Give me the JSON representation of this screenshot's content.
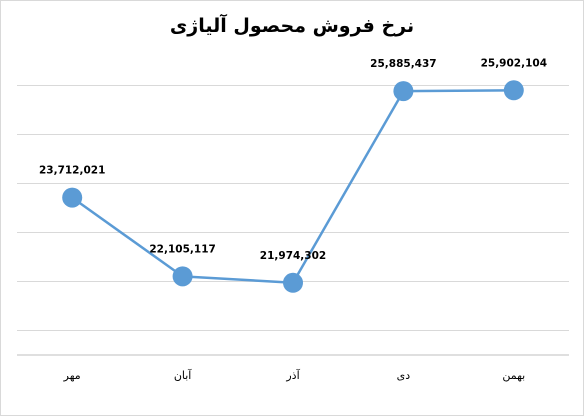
{
  "chart_data": {
    "type": "line",
    "title": "نرخ فروش محصول آلیاژی",
    "categories": [
      "مهر",
      "آبان",
      "آذر",
      "دی",
      "بهمن"
    ],
    "series": [
      {
        "values": [
          23712021,
          22105117,
          21974302,
          25885437,
          25902104
        ]
      }
    ],
    "data_labels": [
      "23,712,021",
      "22,105,117",
      "21,974,302",
      "25,885,437",
      "25,902,104"
    ],
    "ylim": [
      20500000,
      26500000
    ],
    "grid": true,
    "legend": "none",
    "line_color": "#5b9bd5",
    "marker_color": "#5b9bd5"
  }
}
